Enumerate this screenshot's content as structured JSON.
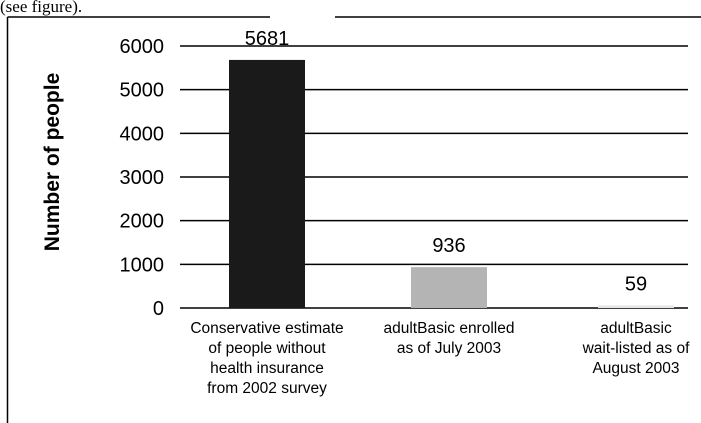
{
  "header_fragment": "(see figure).",
  "chart_data": {
    "type": "bar",
    "title": "",
    "xlabel": "",
    "ylabel": "Number of people",
    "ylim": [
      0,
      6000
    ],
    "yticks": [
      "0",
      "1000",
      "2000",
      "3000",
      "4000",
      "5000",
      "6000"
    ],
    "grid": "horizontal",
    "categories": [
      [
        "Conservative estimate",
        "of people without",
        "health insurance",
        "from 2002 survey"
      ],
      [
        "adultBasic enrolled",
        "as of July 2003"
      ],
      [
        "adultBasic",
        "wait-listed as of",
        "August 2003"
      ]
    ],
    "values": [
      5681,
      936,
      59
    ],
    "data_labels": [
      "5681",
      "936",
      "59"
    ],
    "colors": [
      "#1a1a1a",
      "#b4b4b4",
      "#e6e6e6"
    ]
  }
}
